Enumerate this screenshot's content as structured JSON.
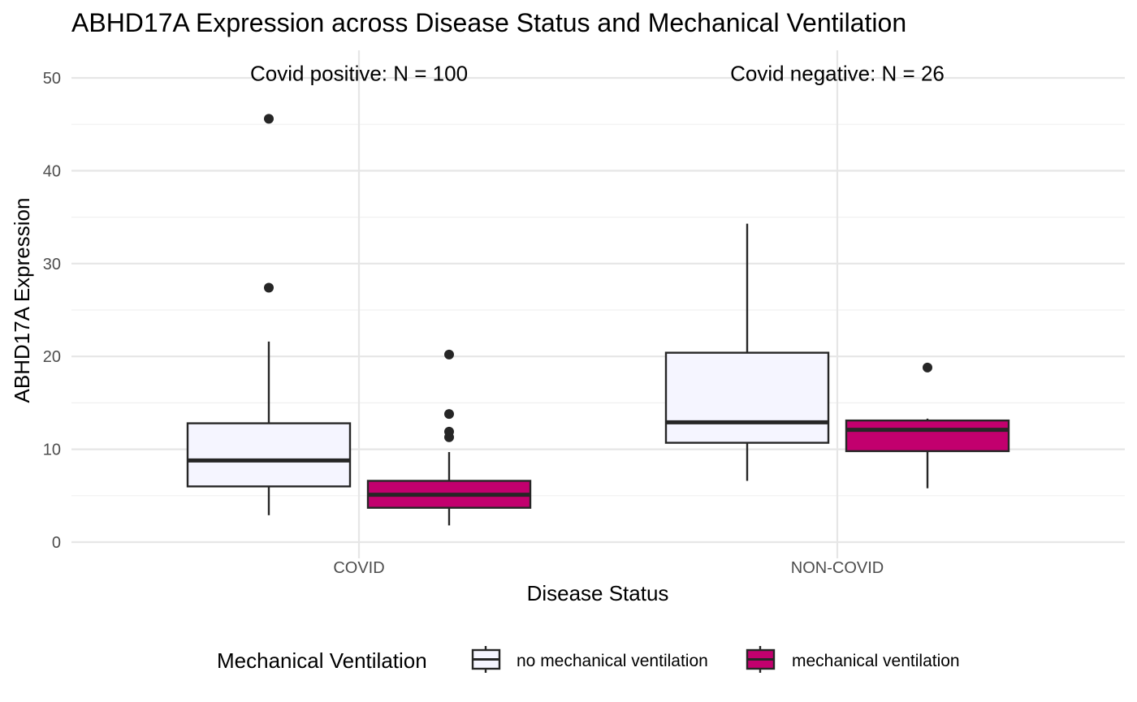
{
  "chart_data": {
    "type": "box",
    "title": "ABHD17A  Expression across Disease Status and Mechanical Ventilation",
    "xlabel": "Disease Status",
    "ylabel": "ABHD17A  Expression",
    "ylim": [
      -2,
      53
    ],
    "y_ticks": [
      0,
      10,
      20,
      30,
      40,
      50
    ],
    "categories": [
      "COVID",
      "NON-COVID"
    ],
    "annotations": [
      {
        "category": "COVID",
        "text": "Covid positive: N =  100",
        "y": 50.5
      },
      {
        "category": "NON-COVID",
        "text": "Covid negative: N =  26",
        "y": 50.5
      }
    ],
    "legend": {
      "title": "Mechanical Ventilation",
      "position": "bottom"
    },
    "series": [
      {
        "name": "no mechanical ventilation",
        "color": "#f5f5ff",
        "boxes": [
          {
            "category": "COVID",
            "min": 2.9,
            "q1": 6.0,
            "median": 8.8,
            "q3": 12.8,
            "max": 21.6,
            "outliers": [
              27.4,
              45.6
            ]
          },
          {
            "category": "NON-COVID",
            "min": 6.6,
            "q1": 10.7,
            "median": 12.9,
            "q3": 20.4,
            "max": 34.3,
            "outliers": []
          }
        ]
      },
      {
        "name": "mechanical ventilation",
        "color": "#c2006e",
        "boxes": [
          {
            "category": "COVID",
            "min": 1.8,
            "q1": 3.7,
            "median": 5.1,
            "q3": 6.6,
            "max": 9.7,
            "outliers": [
              11.3,
              11.9,
              13.8,
              20.2
            ]
          },
          {
            "category": "NON-COVID",
            "min": 5.8,
            "q1": 9.8,
            "median": 12.1,
            "q3": 13.1,
            "max": 13.3,
            "outliers": [
              18.8
            ]
          }
        ]
      }
    ]
  }
}
